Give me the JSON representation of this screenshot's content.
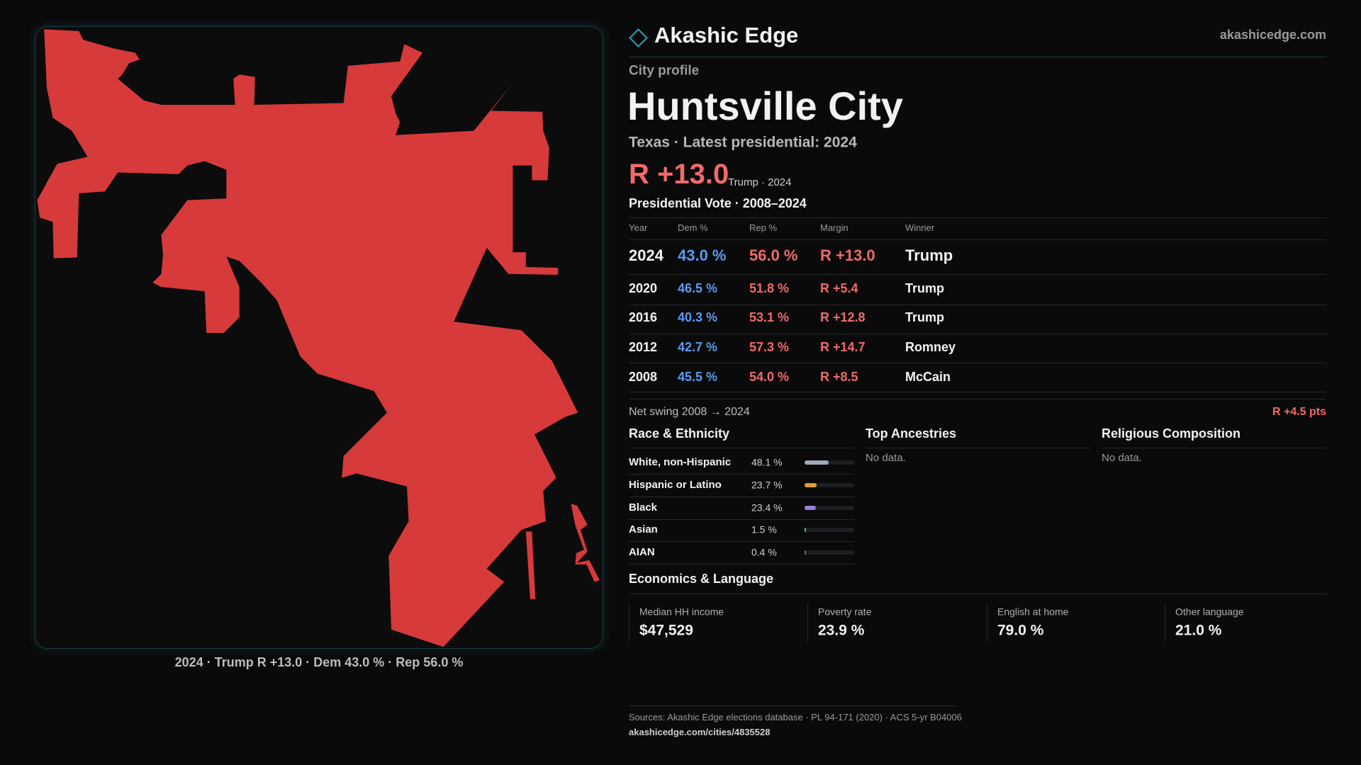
{
  "brand": {
    "name": "Akashic Edge",
    "site": "akashicedge.com"
  },
  "map_caption": "2024 · Trump R +13.0 · Dem 43.0 % · Rep 56.0 %",
  "profile": {
    "kicker": "City profile",
    "title": "Huntsville City",
    "subtitle": "Texas · Latest presidential: 2024",
    "margin": "R +13.0",
    "margin_note": "Trump · 2024"
  },
  "vote_table": {
    "title": "Presidential Vote · 2008–2024",
    "columns": [
      "Year",
      "Dem %",
      "Rep %",
      "Margin",
      "Winner"
    ],
    "rows": [
      [
        "2024",
        "43.0 %",
        "56.0 %",
        "R +13.0",
        "Trump"
      ],
      [
        "2020",
        "46.5 %",
        "51.8 %",
        "R +5.4",
        "Trump"
      ],
      [
        "2016",
        "40.3 %",
        "53.1 %",
        "R +12.8",
        "Trump"
      ],
      [
        "2012",
        "42.7 %",
        "57.3 %",
        "R +14.7",
        "Romney"
      ],
      [
        "2008",
        "45.5 %",
        "54.0 %",
        "R +8.5",
        "McCain"
      ]
    ]
  },
  "net_swing": {
    "label": "Net swing 2008 → 2024",
    "value": "R +4.5 pts"
  },
  "race": {
    "title": "Race & Ethnicity",
    "rows": [
      {
        "name": "White, non-Hispanic",
        "share": 48.1,
        "share_label": "48.1 %",
        "color": "#a3a8b8"
      },
      {
        "name": "Hispanic or Latino",
        "share": 23.7,
        "share_label": "23.7 %",
        "color": "#e0a030"
      },
      {
        "name": "Black",
        "share": 23.4,
        "share_label": "23.4 %",
        "color": "#9a7ee0"
      },
      {
        "name": "Asian",
        "share": 1.5,
        "share_label": "1.5 %",
        "color": "#3fb8a0"
      },
      {
        "name": "AIAN",
        "share": 0.4,
        "share_label": "0.4 %",
        "color": "#6a6e78"
      }
    ]
  },
  "ancestries": {
    "title": "Top Ancestries",
    "note": "No data."
  },
  "religion": {
    "title": "Religious Composition",
    "note": "No data."
  },
  "economics": {
    "title": "Economics & Language",
    "cards": [
      {
        "label": "Median HH income",
        "value": "$47,529"
      },
      {
        "label": "Poverty rate",
        "value": "23.9 %"
      },
      {
        "label": "English at home",
        "value": "79.0 %"
      },
      {
        "label": "Other language",
        "value": "21.0 %"
      }
    ]
  },
  "footer": {
    "sources": "Sources: Akashic Edge elections database · PL 94-171 (2020) · ACS 5-yr B04006",
    "url": "akashicedge.com/cities/4835528"
  }
}
